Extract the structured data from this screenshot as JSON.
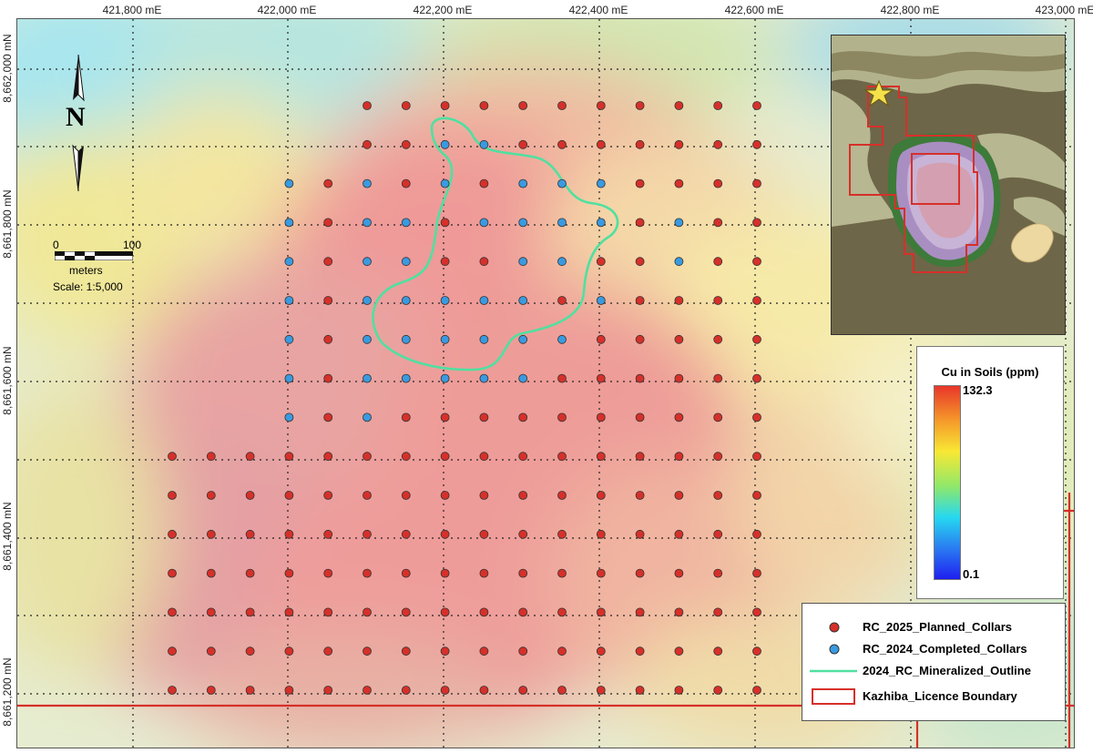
{
  "map": {
    "easting_ticks": [
      "421,800 mE",
      "422,000 mE",
      "422,200 mE",
      "422,400 mE",
      "422,600 mE",
      "422,800 mE",
      "423,000 mE"
    ],
    "northing_ticks": [
      "8,662,000 mN",
      "8,661,800 mN",
      "8,661,600 mN",
      "8,661,400 mN",
      "8,661,200 mN"
    ],
    "north_label": "N",
    "scale": {
      "zero": "0",
      "hundred": "100",
      "units": "meters",
      "text": "Scale: 1:5,000"
    }
  },
  "color_legend": {
    "title": "Cu in Soils (ppm)",
    "max": "132.3",
    "min": "0.1"
  },
  "legend": {
    "items": [
      {
        "label": "RC_2025_Planned_Collars",
        "color": "#d6302a",
        "symbol": "dot"
      },
      {
        "label": "RC_2024_Completed_Collars",
        "color": "#3a9ae0",
        "symbol": "dot"
      },
      {
        "label": "2024_RC_Mineralized_Outline",
        "color": "#4fe0a0",
        "symbol": "line"
      },
      {
        "label": "Kazhiba_Licence Boundary",
        "color": "#d6302a",
        "symbol": "box"
      }
    ]
  },
  "colors": {
    "planned": "#d6302a",
    "completed": "#3a9ae0",
    "outline": "#4fe0a0",
    "boundary": "#d6302a"
  }
}
